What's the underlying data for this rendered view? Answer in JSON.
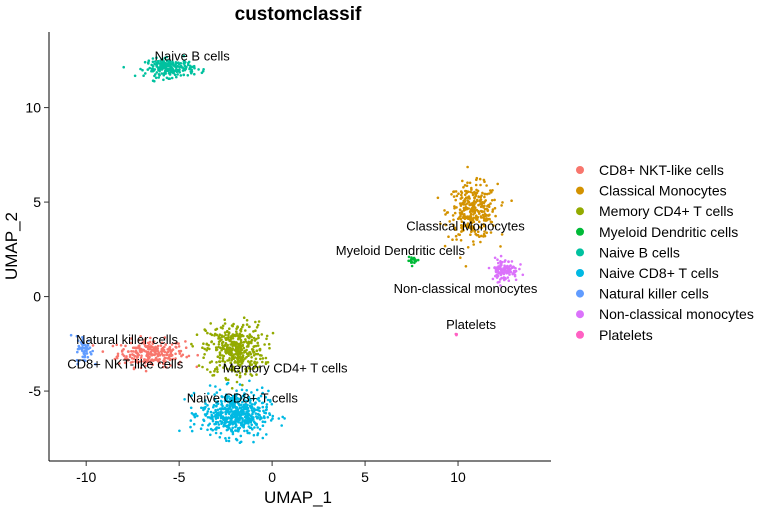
{
  "chart_data": {
    "type": "scatter",
    "title": "customclassif",
    "xlabel": "UMAP_1",
    "ylabel": "UMAP_2",
    "xlim": [
      -12,
      15
    ],
    "ylim": [
      -8.7,
      14.0
    ],
    "xticks": [
      -10,
      -5,
      0,
      5,
      10
    ],
    "yticks": [
      -5,
      0,
      5,
      10
    ],
    "grid": false,
    "legend_position": "right",
    "series": [
      {
        "name": "CD8+ NKT-like cells",
        "color": "#F8766D",
        "center": [
          -6.5,
          -3.0
        ],
        "spread": [
          1.5,
          0.6
        ],
        "n": 260
      },
      {
        "name": "Classical Monocytes",
        "color": "#D39200",
        "center": [
          10.8,
          4.5
        ],
        "spread": [
          1.1,
          1.2
        ],
        "n": 320
      },
      {
        "name": "Memory CD4+ T cells",
        "color": "#93AA00",
        "center": [
          -2.0,
          -2.8
        ],
        "spread": [
          1.3,
          1.2
        ],
        "n": 420
      },
      {
        "name": "Myeloid Dendritic cells",
        "color": "#00BA38",
        "center": [
          7.6,
          1.9
        ],
        "spread": [
          0.25,
          0.15
        ],
        "n": 18
      },
      {
        "name": "Naive B cells",
        "color": "#00C19F",
        "center": [
          -5.5,
          12.1
        ],
        "spread": [
          1.1,
          0.4
        ],
        "n": 220
      },
      {
        "name": "Naive CD8+ T cells",
        "color": "#00B9E3",
        "center": [
          -2.0,
          -6.2
        ],
        "spread": [
          1.5,
          1.0
        ],
        "n": 520
      },
      {
        "name": "Natural killer  cells",
        "color": "#619CFF",
        "center": [
          -10.1,
          -2.8
        ],
        "spread": [
          0.35,
          0.6
        ],
        "n": 60
      },
      {
        "name": "Non-classical monocytes",
        "color": "#DB72FB",
        "center": [
          12.5,
          1.4
        ],
        "spread": [
          0.6,
          0.5
        ],
        "n": 110
      },
      {
        "name": "Platelets",
        "color": "#FF61C3",
        "center": [
          9.9,
          -2.0
        ],
        "spread": [
          0.08,
          0.08
        ],
        "n": 3
      }
    ],
    "annotations": [
      {
        "text": "Naive B cells",
        "x": -4.3,
        "y": 12.7
      },
      {
        "text": "Classical Monocytes",
        "x": 10.4,
        "y": 3.7
      },
      {
        "text": "Myeloid Dendritic cells",
        "x": 6.9,
        "y": 2.4
      },
      {
        "text": "Non-classical monocytes",
        "x": 10.4,
        "y": 0.4
      },
      {
        "text": "Platelets",
        "x": 10.7,
        "y": -1.5
      },
      {
        "text": "Natural killer  cells",
        "x": -7.8,
        "y": -2.3
      },
      {
        "text": "CD8+ NKT-like cells",
        "x": -7.9,
        "y": -3.6
      },
      {
        "text": "Memory CD4+ T cells",
        "x": 0.7,
        "y": -3.8
      },
      {
        "text": "Naive CD8+ T cells",
        "x": -1.6,
        "y": -5.4
      }
    ]
  }
}
